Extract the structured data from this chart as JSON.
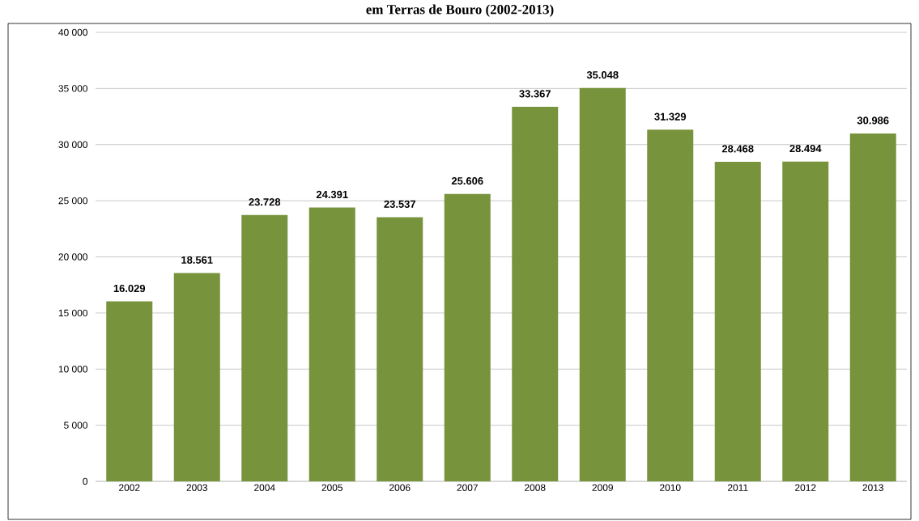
{
  "chart_data": {
    "type": "bar",
    "title": "em Terras de Bouro (2002-2013)",
    "categories": [
      "2002",
      "2003",
      "2004",
      "2005",
      "2006",
      "2007",
      "2008",
      "2009",
      "2010",
      "2011",
      "2012",
      "2013"
    ],
    "values": [
      16029,
      18561,
      23728,
      24391,
      23537,
      25606,
      33367,
      35048,
      31329,
      28468,
      28494,
      30986
    ],
    "value_labels": [
      "16.029",
      "18.561",
      "23.728",
      "24.391",
      "23.537",
      "25.606",
      "33.367",
      "35.048",
      "31.329",
      "28.468",
      "28.494",
      "30.986"
    ],
    "color": "#77933c",
    "ylim": [
      0,
      40000
    ],
    "yticks": [
      {
        "value": 0,
        "label": "0"
      },
      {
        "value": 5000,
        "label": "5 000"
      },
      {
        "value": 10000,
        "label": "10 000"
      },
      {
        "value": 15000,
        "label": "15 000"
      },
      {
        "value": 20000,
        "label": "20 000"
      },
      {
        "value": 25000,
        "label": "25 000"
      },
      {
        "value": 30000,
        "label": "30 000"
      },
      {
        "value": 35000,
        "label": "35 000"
      },
      {
        "value": 40000,
        "label": "40 000"
      }
    ],
    "grid": "y"
  }
}
